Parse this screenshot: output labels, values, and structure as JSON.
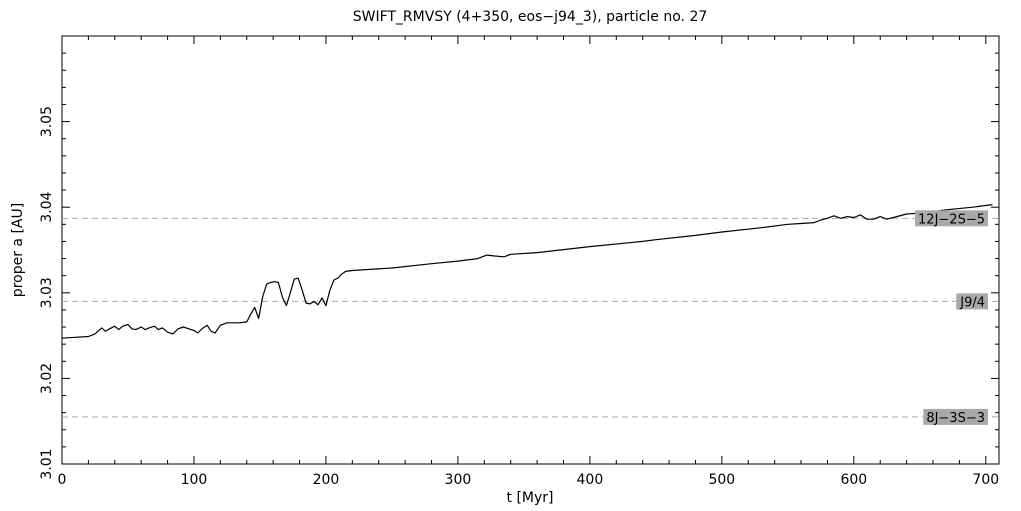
{
  "chart_data": {
    "type": "line",
    "title": "SWIFT_RMVSY (4+350, eos−j94_3), particle no. 27",
    "xlabel": "t [Myr]",
    "ylabel": "proper a [AU]",
    "xlim": [
      0,
      710
    ],
    "ylim": [
      3.01,
      3.06
    ],
    "xticks": [
      0,
      100,
      200,
      300,
      400,
      500,
      600,
      700
    ],
    "yticks": [
      3.01,
      3.02,
      3.03,
      3.04,
      3.05
    ],
    "grid": false,
    "legend": "none",
    "colors": {
      "series": "#000000",
      "resonance_line": "#aaaaaa",
      "resonance_label_bg": "#a9a9a9"
    },
    "resonances": [
      {
        "label": "12J−2S−5",
        "a": 3.0387
      },
      {
        "label": "J9/4",
        "a": 3.029
      },
      {
        "label": "8J−3S−3",
        "a": 3.0155
      }
    ],
    "series": [
      {
        "x": [
          0,
          10,
          20,
          25,
          30,
          33,
          36,
          40,
          43,
          46,
          50,
          53,
          56,
          60,
          63,
          66,
          70,
          73,
          76,
          80,
          84,
          88,
          92,
          96,
          100,
          103,
          106,
          110,
          113,
          116,
          120,
          125,
          130,
          135,
          140,
          143,
          146,
          149,
          152,
          155,
          158,
          161,
          164,
          167,
          170,
          173,
          176,
          179,
          182,
          185,
          188,
          191,
          194,
          197,
          200,
          203,
          206,
          209,
          212,
          215,
          220,
          250,
          280,
          300,
          315,
          322,
          328,
          335,
          340,
          360,
          400,
          440,
          450,
          480,
          500,
          530,
          550,
          560,
          570,
          575,
          580,
          585,
          590,
          595,
          600,
          605,
          610,
          615,
          620,
          625,
          630,
          640,
          650,
          670,
          690,
          700,
          705
        ],
        "y": [
          3.0247,
          3.0248,
          3.0249,
          3.0252,
          3.0259,
          3.0255,
          3.0258,
          3.0261,
          3.0257,
          3.0261,
          3.0263,
          3.0258,
          3.0257,
          3.026,
          3.0257,
          3.0259,
          3.0261,
          3.0257,
          3.0259,
          3.0254,
          3.0252,
          3.0258,
          3.026,
          3.0258,
          3.0256,
          3.0253,
          3.0258,
          3.0262,
          3.0255,
          3.0253,
          3.0262,
          3.0265,
          3.0265,
          3.0265,
          3.0266,
          3.0275,
          3.0283,
          3.027,
          3.0295,
          3.031,
          3.0312,
          3.0313,
          3.0312,
          3.0295,
          3.0285,
          3.03,
          3.0316,
          3.0317,
          3.0303,
          3.0288,
          3.0287,
          3.029,
          3.0286,
          3.0294,
          3.0285,
          3.0303,
          3.0315,
          3.0317,
          3.0322,
          3.0325,
          3.0326,
          3.0329,
          3.0334,
          3.0337,
          3.034,
          3.0344,
          3.0343,
          3.0342,
          3.0345,
          3.0347,
          3.0354,
          3.036,
          3.0362,
          3.0367,
          3.0371,
          3.0376,
          3.038,
          3.0381,
          3.0382,
          3.0385,
          3.0387,
          3.039,
          3.0387,
          3.0389,
          3.0388,
          3.0391,
          3.0386,
          3.0386,
          3.0389,
          3.0386,
          3.0388,
          3.0392,
          3.0393,
          3.0397,
          3.04,
          3.0402,
          3.0403
        ]
      }
    ]
  }
}
